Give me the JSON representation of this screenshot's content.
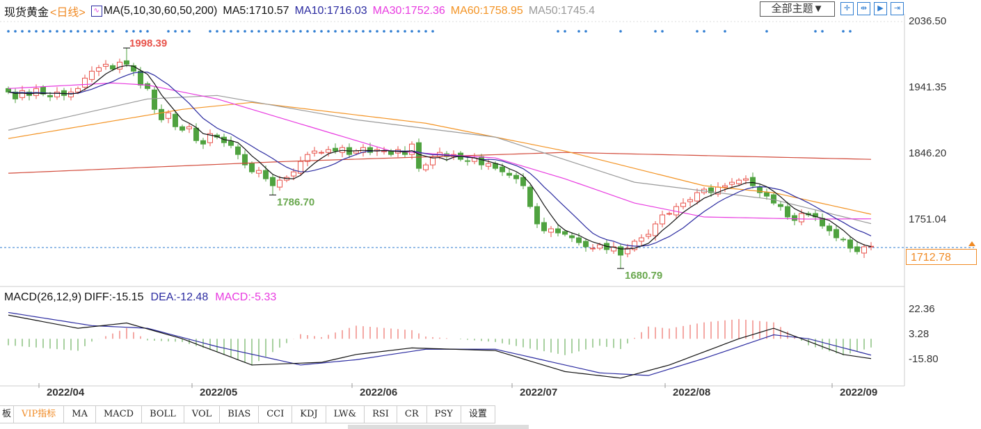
{
  "header": {
    "symbol": "现货黄金",
    "period": "<日线>",
    "ma_label": "MA(5,10,30,60,50,200)",
    "ma5": "MA5:1710.57",
    "ma10": "MA10:1716.03",
    "ma30": "MA30:1752.36",
    "ma60": "MA60:1758.95",
    "ma50": "MA50:1745.4"
  },
  "toolbar": {
    "theme": "全部主题▼",
    "icons": [
      "crosshair-icon",
      "zoom-range-icon",
      "play-icon",
      "jump-end-icon"
    ]
  },
  "price_axis": [
    "2036.50",
    "1941.35",
    "1846.20",
    "1751.04"
  ],
  "current_price": "1712.78",
  "annotations": {
    "high": "1998.39",
    "low1": "1786.70",
    "low2": "1680.79"
  },
  "macd": {
    "label": "MACD(26,12,9)",
    "diff": "DIFF:-15.15",
    "dea": "DEA:-12.48",
    "macd": "MACD:-5.33",
    "axis": [
      "22.36",
      "3.28",
      "-15.80"
    ]
  },
  "dates": [
    {
      "label": "2022/04",
      "idx": 5
    },
    {
      "label": "2022/05",
      "idx": 27
    },
    {
      "label": "2022/06",
      "idx": 50
    },
    {
      "label": "2022/07",
      "idx": 73
    },
    {
      "label": "2022/08",
      "idx": 95
    },
    {
      "label": "2022/09",
      "idx": 119
    }
  ],
  "tabs": [
    "板",
    "VIP指标",
    "MA",
    "MACD",
    "BOLL",
    "VOL",
    "BIAS",
    "CCI",
    "KDJ",
    "LW&",
    "RSI",
    "CR",
    "PSY",
    "设置"
  ],
  "colors": {
    "up": "#e8524a",
    "down": "#4fa23f",
    "ma5": "#111111",
    "ma10": "#2a2aa0",
    "ma30": "#e83ae0",
    "ma60": "#f39323",
    "ma50": "#999999",
    "ma200": "#d24a3a",
    "accent": "#2c7bd0"
  },
  "chart_data": {
    "type": "candlestick",
    "title": "现货黄金 日线",
    "ylim": [
      1680,
      2036.5
    ],
    "closes": [
      1935,
      1925,
      1937,
      1930,
      1940,
      1932,
      1928,
      1935,
      1930,
      1935,
      1940,
      1955,
      1965,
      1970,
      1975,
      1968,
      1978,
      1975,
      1965,
      1945,
      1940,
      1910,
      1895,
      1905,
      1885,
      1880,
      1885,
      1865,
      1860,
      1875,
      1870,
      1862,
      1858,
      1845,
      1830,
      1820,
      1822,
      1810,
      1800,
      1808,
      1812,
      1820,
      1835,
      1845,
      1850,
      1848,
      1852,
      1850,
      1855,
      1845,
      1850,
      1855,
      1848,
      1852,
      1850,
      1845,
      1852,
      1845,
      1860,
      1825,
      1830,
      1840,
      1848,
      1842,
      1845,
      1838,
      1835,
      1840,
      1830,
      1832,
      1825,
      1820,
      1815,
      1810,
      1800,
      1770,
      1745,
      1735,
      1738,
      1732,
      1730,
      1725,
      1718,
      1712,
      1710,
      1715,
      1708,
      1712,
      1700,
      1710,
      1720,
      1725,
      1730,
      1745,
      1758,
      1760,
      1770,
      1775,
      1780,
      1790,
      1795,
      1790,
      1798,
      1800,
      1805,
      1808,
      1810,
      1800,
      1790,
      1785,
      1775,
      1770,
      1755,
      1750,
      1760,
      1758,
      1755,
      1742,
      1735,
      1725,
      1722,
      1710,
      1705,
      1712,
      1712.78
    ],
    "extremes": [
      {
        "idx": 17,
        "high": 1998.39
      },
      {
        "idx": 38,
        "low": 1786.7
      },
      {
        "idx": 88,
        "low": 1680.79
      }
    ],
    "ma30": [
      [
        0,
        1940
      ],
      [
        15,
        1948
      ],
      [
        20,
        1945
      ],
      [
        30,
        1925
      ],
      [
        45,
        1880
      ],
      [
        55,
        1850
      ],
      [
        70,
        1840
      ],
      [
        80,
        1810
      ],
      [
        90,
        1775
      ],
      [
        100,
        1755
      ],
      [
        115,
        1752
      ],
      [
        124,
        1752.36
      ]
    ],
    "ma50": [
      [
        0,
        1880
      ],
      [
        20,
        1925
      ],
      [
        30,
        1930
      ],
      [
        50,
        1895
      ],
      [
        70,
        1870
      ],
      [
        90,
        1805
      ],
      [
        110,
        1780
      ],
      [
        124,
        1745.4
      ]
    ],
    "ma60": [
      [
        0,
        1868
      ],
      [
        25,
        1910
      ],
      [
        35,
        1920
      ],
      [
        60,
        1890
      ],
      [
        80,
        1850
      ],
      [
        100,
        1800
      ],
      [
        110,
        1790
      ],
      [
        124,
        1758.95
      ]
    ],
    "ma200": [
      [
        0,
        1818
      ],
      [
        40,
        1835
      ],
      [
        80,
        1848
      ],
      [
        124,
        1838
      ]
    ],
    "macd_diff": [
      [
        0,
        18
      ],
      [
        10,
        8
      ],
      [
        17,
        12
      ],
      [
        25,
        0
      ],
      [
        35,
        -20
      ],
      [
        45,
        -18
      ],
      [
        50,
        -12
      ],
      [
        58,
        -7
      ],
      [
        70,
        -9
      ],
      [
        80,
        -25
      ],
      [
        88,
        -30
      ],
      [
        95,
        -20
      ],
      [
        105,
        0
      ],
      [
        110,
        8
      ],
      [
        115,
        -2
      ],
      [
        120,
        -12
      ],
      [
        124,
        -15.15
      ]
    ],
    "macd_dea": [
      [
        0,
        20
      ],
      [
        12,
        10
      ],
      [
        20,
        8
      ],
      [
        30,
        -6
      ],
      [
        42,
        -20
      ],
      [
        50,
        -16
      ],
      [
        60,
        -8
      ],
      [
        70,
        -8
      ],
      [
        85,
        -26
      ],
      [
        92,
        -28
      ],
      [
        100,
        -15
      ],
      [
        110,
        3
      ],
      [
        115,
        0
      ],
      [
        124,
        -12.48
      ]
    ],
    "macd_ylim": [
      -30,
      30
    ],
    "signal_marks": [
      0,
      1,
      2,
      3,
      4,
      5,
      6,
      7,
      8,
      9,
      10,
      11,
      12,
      13,
      14,
      15,
      17,
      18,
      19,
      20,
      23,
      24,
      25,
      26,
      29,
      30,
      31,
      32,
      33,
      34,
      35,
      36,
      37,
      38,
      39,
      40,
      41,
      42,
      43,
      44,
      45,
      46,
      47,
      48,
      49,
      50,
      51,
      52,
      53,
      54,
      55,
      56,
      57,
      58,
      59,
      60,
      61,
      79,
      80,
      82,
      83,
      88,
      93,
      94,
      99,
      100,
      103,
      109,
      116,
      117,
      120,
      121
    ]
  }
}
